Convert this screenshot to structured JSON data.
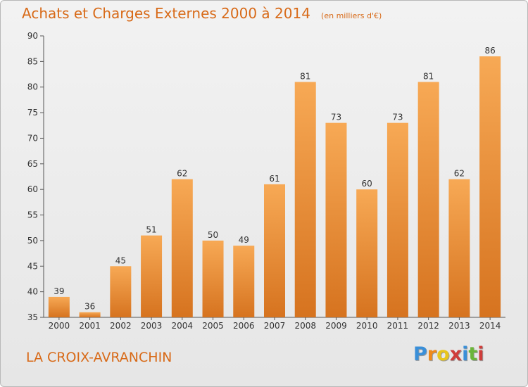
{
  "header": {
    "title": "Achats et Charges Externes 2000 à 2014",
    "unit": "(en milliers d'€)"
  },
  "footer": {
    "commune": "LA CROIX-AVRANCHIN",
    "brand": [
      "P",
      "r",
      "o",
      "x",
      "i",
      "t",
      "i"
    ]
  },
  "colors": {
    "bar_top": "#f7a955",
    "bar_bottom": "#d6731f",
    "title": "#d86a18",
    "brand": [
      "#3a8fd8",
      "#f08a1a",
      "#e8c51c",
      "#cf3d3a",
      "#3a8fd8",
      "#6bb53a",
      "#cf3d3a"
    ]
  },
  "chart_data": {
    "type": "bar",
    "title": "Achats et Charges Externes 2000 à 2014",
    "subtitle": "(en milliers d'€)",
    "categories": [
      "2000",
      "2001",
      "2002",
      "2003",
      "2004",
      "2005",
      "2006",
      "2007",
      "2008",
      "2009",
      "2010",
      "2011",
      "2012",
      "2013",
      "2014"
    ],
    "values": [
      39,
      36,
      45,
      51,
      62,
      50,
      49,
      61,
      81,
      73,
      60,
      73,
      81,
      62,
      86
    ],
    "ylim": [
      35,
      90
    ],
    "yticks": [
      35,
      40,
      45,
      50,
      55,
      60,
      65,
      70,
      75,
      80,
      85,
      90
    ],
    "grid": false,
    "data_labels": true
  }
}
